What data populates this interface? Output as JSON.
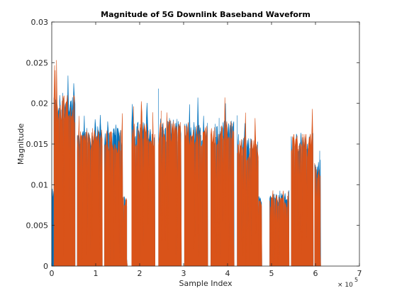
{
  "chart_data": {
    "type": "area",
    "title": "Magnitude of 5G Downlink Baseband Waveform",
    "xlabel": "Sample Index",
    "ylabel": "Magnitude",
    "x_exponent_base": "× 10",
    "x_exponent_power": "5",
    "xlim": [
      0,
      700000
    ],
    "ylim": [
      0,
      0.03
    ],
    "x_ticks": [
      0,
      100000,
      200000,
      300000,
      400000,
      500000,
      600000,
      700000
    ],
    "x_tick_labels": [
      "0",
      "1",
      "2",
      "3",
      "4",
      "5",
      "6",
      "7"
    ],
    "y_ticks": [
      0,
      0.005,
      0.01,
      0.015,
      0.02,
      0.025,
      0.03
    ],
    "y_tick_labels": [
      "0",
      "0.005",
      "0.01",
      "0.015",
      "0.02",
      "0.025",
      "0.03"
    ],
    "grid": false,
    "legend": "none",
    "series": [
      {
        "color": "#0072BD",
        "segments": [
          {
            "x_start": 0,
            "x_end": 5000,
            "envelope": 0.0095,
            "peak": 0.0102
          },
          {
            "x_start": 5000,
            "x_end": 53000,
            "envelope": 0.0215,
            "peak": 0.0245
          },
          {
            "x_start": 58000,
            "x_end": 115000,
            "envelope": 0.0172,
            "peak": 0.0193
          },
          {
            "x_start": 120000,
            "x_end": 162000,
            "envelope": 0.017,
            "peak": 0.0194
          },
          {
            "x_start": 162000,
            "x_end": 172000,
            "envelope": 0.0088,
            "peak": 0.0092
          },
          {
            "x_start": 182000,
            "x_end": 235000,
            "envelope": 0.0178,
            "peak": 0.0208
          },
          {
            "x_start": 243000,
            "x_end": 295000,
            "envelope": 0.0182,
            "peak": 0.0225
          },
          {
            "x_start": 302000,
            "x_end": 355000,
            "envelope": 0.0178,
            "peak": 0.0208
          },
          {
            "x_start": 362000,
            "x_end": 415000,
            "envelope": 0.018,
            "peak": 0.021
          },
          {
            "x_start": 422000,
            "x_end": 470000,
            "envelope": 0.0158,
            "peak": 0.0193
          },
          {
            "x_start": 470000,
            "x_end": 478000,
            "envelope": 0.0088,
            "peak": 0.0092
          },
          {
            "x_start": 496000,
            "x_end": 540000,
            "envelope": 0.009,
            "peak": 0.0095
          },
          {
            "x_start": 545000,
            "x_end": 595000,
            "envelope": 0.0165,
            "peak": 0.02
          },
          {
            "x_start": 598000,
            "x_end": 612000,
            "envelope": 0.013,
            "peak": 0.0145
          }
        ]
      },
      {
        "color": "#D95319",
        "segments": [
          {
            "x_start": 5000,
            "x_end": 53000,
            "envelope": 0.0212,
            "peak": 0.0256
          },
          {
            "x_start": 58000,
            "x_end": 115000,
            "envelope": 0.017,
            "peak": 0.019
          },
          {
            "x_start": 120000,
            "x_end": 162000,
            "envelope": 0.0168,
            "peak": 0.0192
          },
          {
            "x_start": 162000,
            "x_end": 172000,
            "envelope": 0.0086,
            "peak": 0.0091
          },
          {
            "x_start": 182000,
            "x_end": 235000,
            "envelope": 0.0176,
            "peak": 0.0205
          },
          {
            "x_start": 243000,
            "x_end": 295000,
            "envelope": 0.018,
            "peak": 0.021
          },
          {
            "x_start": 302000,
            "x_end": 355000,
            "envelope": 0.0176,
            "peak": 0.0205
          },
          {
            "x_start": 362000,
            "x_end": 415000,
            "envelope": 0.0178,
            "peak": 0.0208
          },
          {
            "x_start": 422000,
            "x_end": 470000,
            "envelope": 0.0156,
            "peak": 0.019
          },
          {
            "x_start": 470000,
            "x_end": 478000,
            "envelope": 0.0086,
            "peak": 0.0091
          },
          {
            "x_start": 496000,
            "x_end": 540000,
            "envelope": 0.0088,
            "peak": 0.0093
          },
          {
            "x_start": 545000,
            "x_end": 595000,
            "envelope": 0.0163,
            "peak": 0.0198
          },
          {
            "x_start": 598000,
            "x_end": 612000,
            "envelope": 0.0128,
            "peak": 0.0143
          }
        ]
      }
    ]
  }
}
